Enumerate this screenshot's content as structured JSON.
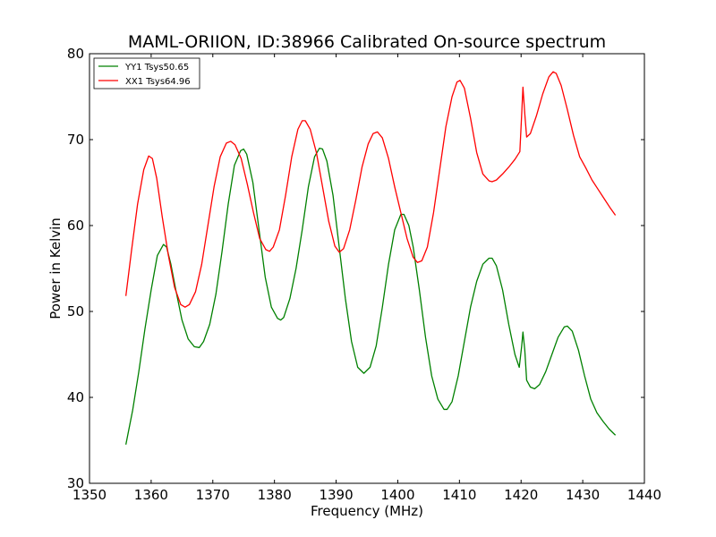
{
  "chart_data": {
    "type": "line",
    "title": "MAML-ORIION, ID:38966 Calibrated On-source spectrum",
    "xlabel": "Frequency (MHz)",
    "ylabel": "Power in Kelvin",
    "xlim": [
      1350,
      1440
    ],
    "ylim": [
      30,
      80
    ],
    "xticks": [
      "1350",
      "1360",
      "1370",
      "1380",
      "1390",
      "1400",
      "1410",
      "1420",
      "1430",
      "1440"
    ],
    "yticks": [
      "30",
      "40",
      "50",
      "60",
      "70",
      "80"
    ],
    "grid": false,
    "legend_position": "top-left",
    "series": [
      {
        "name": "YY1 Tsys50.65",
        "color": "#008000",
        "points": [
          [
            1355.9,
            34.5
          ],
          [
            1357.0,
            38.5
          ],
          [
            1358.0,
            43.0
          ],
          [
            1359.0,
            48.0
          ],
          [
            1360.0,
            52.5
          ],
          [
            1361.0,
            56.5
          ],
          [
            1362.0,
            57.8
          ],
          [
            1362.5,
            57.5
          ],
          [
            1363.2,
            55.5
          ],
          [
            1364.0,
            52.5
          ],
          [
            1365.0,
            49.0
          ],
          [
            1366.0,
            46.8
          ],
          [
            1367.0,
            45.9
          ],
          [
            1367.8,
            45.8
          ],
          [
            1368.5,
            46.5
          ],
          [
            1369.5,
            48.5
          ],
          [
            1370.5,
            52.0
          ],
          [
            1371.5,
            57.0
          ],
          [
            1372.5,
            62.5
          ],
          [
            1373.5,
            67.0
          ],
          [
            1374.5,
            68.7
          ],
          [
            1375.0,
            68.9
          ],
          [
            1375.5,
            68.3
          ],
          [
            1376.5,
            65.0
          ],
          [
            1377.5,
            59.5
          ],
          [
            1378.5,
            54.0
          ],
          [
            1379.5,
            50.5
          ],
          [
            1380.5,
            49.2
          ],
          [
            1381.0,
            49.0
          ],
          [
            1381.5,
            49.3
          ],
          [
            1382.5,
            51.5
          ],
          [
            1383.5,
            55.0
          ],
          [
            1384.5,
            59.5
          ],
          [
            1385.5,
            64.5
          ],
          [
            1386.5,
            68.0
          ],
          [
            1387.3,
            69.0
          ],
          [
            1387.8,
            68.9
          ],
          [
            1388.5,
            67.5
          ],
          [
            1389.5,
            63.5
          ],
          [
            1390.5,
            57.5
          ],
          [
            1391.5,
            51.5
          ],
          [
            1392.5,
            46.5
          ],
          [
            1393.5,
            43.5
          ],
          [
            1394.5,
            42.8
          ],
          [
            1395.5,
            43.5
          ],
          [
            1396.5,
            46.0
          ],
          [
            1397.5,
            50.5
          ],
          [
            1398.5,
            55.5
          ],
          [
            1399.5,
            59.5
          ],
          [
            1400.5,
            61.3
          ],
          [
            1401.0,
            61.3
          ],
          [
            1401.8,
            60.0
          ],
          [
            1402.5,
            57.5
          ],
          [
            1403.5,
            52.5
          ],
          [
            1404.5,
            47.0
          ],
          [
            1405.5,
            42.5
          ],
          [
            1406.5,
            39.8
          ],
          [
            1407.5,
            38.6
          ],
          [
            1408.0,
            38.6
          ],
          [
            1408.8,
            39.5
          ],
          [
            1409.8,
            42.5
          ],
          [
            1410.8,
            46.5
          ],
          [
            1411.8,
            50.5
          ],
          [
            1412.8,
            53.5
          ],
          [
            1413.8,
            55.5
          ],
          [
            1414.8,
            56.2
          ],
          [
            1415.3,
            56.2
          ],
          [
            1416.0,
            55.3
          ],
          [
            1417.0,
            52.5
          ],
          [
            1418.0,
            48.5
          ],
          [
            1419.0,
            45.0
          ],
          [
            1419.7,
            43.5
          ],
          [
            1420.1,
            46.0
          ],
          [
            1420.3,
            47.6
          ],
          [
            1420.6,
            45.5
          ],
          [
            1420.9,
            42.0
          ],
          [
            1421.5,
            41.2
          ],
          [
            1422.2,
            41.0
          ],
          [
            1423.0,
            41.5
          ],
          [
            1424.0,
            43.0
          ],
          [
            1425.0,
            45.0
          ],
          [
            1426.0,
            47.0
          ],
          [
            1427.0,
            48.2
          ],
          [
            1427.5,
            48.3
          ],
          [
            1428.3,
            47.7
          ],
          [
            1429.3,
            45.5
          ],
          [
            1430.3,
            42.5
          ],
          [
            1431.3,
            39.8
          ],
          [
            1432.3,
            38.2
          ],
          [
            1433.3,
            37.2
          ],
          [
            1434.3,
            36.3
          ],
          [
            1435.3,
            35.6
          ]
        ]
      },
      {
        "name": "XX1 Tsys64.96",
        "color": "#ff0000",
        "points": [
          [
            1355.9,
            51.8
          ],
          [
            1356.8,
            57.0
          ],
          [
            1357.8,
            62.5
          ],
          [
            1358.8,
            66.5
          ],
          [
            1359.6,
            68.1
          ],
          [
            1360.2,
            67.8
          ],
          [
            1360.9,
            65.5
          ],
          [
            1361.8,
            61.0
          ],
          [
            1362.8,
            56.5
          ],
          [
            1363.8,
            52.8
          ],
          [
            1364.8,
            50.8
          ],
          [
            1365.5,
            50.5
          ],
          [
            1366.2,
            50.8
          ],
          [
            1367.2,
            52.3
          ],
          [
            1368.2,
            55.5
          ],
          [
            1369.2,
            60.0
          ],
          [
            1370.2,
            64.5
          ],
          [
            1371.2,
            68.0
          ],
          [
            1372.2,
            69.6
          ],
          [
            1372.9,
            69.8
          ],
          [
            1373.6,
            69.4
          ],
          [
            1374.6,
            67.8
          ],
          [
            1375.6,
            64.8
          ],
          [
            1376.6,
            61.5
          ],
          [
            1377.6,
            58.5
          ],
          [
            1378.6,
            57.2
          ],
          [
            1379.2,
            57.0
          ],
          [
            1379.8,
            57.5
          ],
          [
            1380.8,
            59.5
          ],
          [
            1381.8,
            63.5
          ],
          [
            1382.8,
            68.0
          ],
          [
            1383.8,
            71.2
          ],
          [
            1384.5,
            72.2
          ],
          [
            1385.0,
            72.2
          ],
          [
            1385.8,
            71.2
          ],
          [
            1386.8,
            68.5
          ],
          [
            1387.8,
            64.5
          ],
          [
            1388.8,
            60.5
          ],
          [
            1389.8,
            57.6
          ],
          [
            1390.5,
            56.9
          ],
          [
            1391.2,
            57.3
          ],
          [
            1392.2,
            59.5
          ],
          [
            1393.2,
            63.0
          ],
          [
            1394.2,
            66.8
          ],
          [
            1395.2,
            69.5
          ],
          [
            1396.0,
            70.7
          ],
          [
            1396.7,
            70.9
          ],
          [
            1397.5,
            70.2
          ],
          [
            1398.5,
            67.8
          ],
          [
            1399.5,
            64.5
          ],
          [
            1400.5,
            61.5
          ],
          [
            1401.5,
            58.5
          ],
          [
            1402.5,
            56.3
          ],
          [
            1403.2,
            55.7
          ],
          [
            1403.9,
            55.9
          ],
          [
            1404.8,
            57.5
          ],
          [
            1405.8,
            61.5
          ],
          [
            1406.8,
            66.5
          ],
          [
            1407.8,
            71.5
          ],
          [
            1408.8,
            75.0
          ],
          [
            1409.6,
            76.7
          ],
          [
            1410.1,
            76.9
          ],
          [
            1410.8,
            76.0
          ],
          [
            1411.8,
            72.5
          ],
          [
            1412.8,
            68.5
          ],
          [
            1413.8,
            66.0
          ],
          [
            1414.8,
            65.2
          ],
          [
            1415.3,
            65.1
          ],
          [
            1416.0,
            65.3
          ],
          [
            1417.0,
            66.0
          ],
          [
            1418.0,
            66.8
          ],
          [
            1419.0,
            67.7
          ],
          [
            1419.8,
            68.6
          ],
          [
            1420.1,
            73.0
          ],
          [
            1420.3,
            76.1
          ],
          [
            1420.6,
            73.0
          ],
          [
            1420.9,
            70.3
          ],
          [
            1421.5,
            70.7
          ],
          [
            1422.5,
            72.8
          ],
          [
            1423.5,
            75.3
          ],
          [
            1424.5,
            77.3
          ],
          [
            1425.2,
            77.9
          ],
          [
            1425.7,
            77.7
          ],
          [
            1426.5,
            76.3
          ],
          [
            1427.5,
            73.5
          ],
          [
            1428.5,
            70.5
          ],
          [
            1429.5,
            68.0
          ],
          [
            1430.5,
            66.7
          ],
          [
            1431.5,
            65.3
          ],
          [
            1432.5,
            64.2
          ],
          [
            1433.5,
            63.1
          ],
          [
            1434.5,
            62.0
          ],
          [
            1435.3,
            61.2
          ]
        ]
      }
    ]
  }
}
